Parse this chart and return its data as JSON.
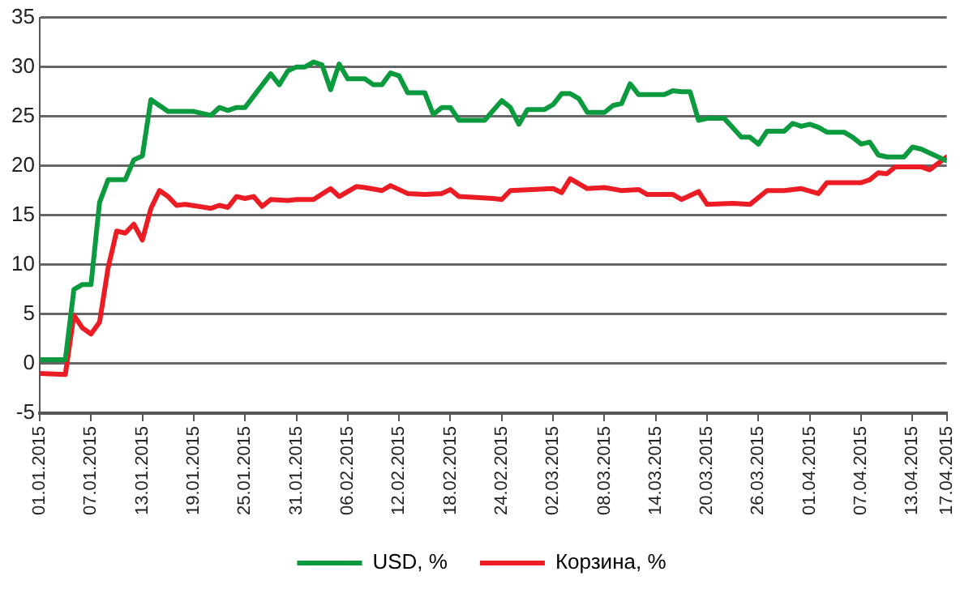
{
  "chart_data": {
    "type": "line",
    "xlim": [
      "2015-01-01",
      "2015-04-17"
    ],
    "xticks": [
      {
        "value": "2015-01-01",
        "label": "01.01.2015"
      },
      {
        "value": "2015-01-07",
        "label": "07.01.2015"
      },
      {
        "value": "2015-01-13",
        "label": "13.01.2015"
      },
      {
        "value": "2015-01-19",
        "label": "19.01.2015"
      },
      {
        "value": "2015-01-25",
        "label": "25.01.2015"
      },
      {
        "value": "2015-01-31",
        "label": "31.01.2015"
      },
      {
        "value": "2015-02-06",
        "label": "06.02.2015"
      },
      {
        "value": "2015-02-12",
        "label": "12.02.2015"
      },
      {
        "value": "2015-02-18",
        "label": "18.02.2015"
      },
      {
        "value": "2015-02-24",
        "label": "24.02.2015"
      },
      {
        "value": "2015-03-02",
        "label": "02.03.2015"
      },
      {
        "value": "2015-03-08",
        "label": "08.03.2015"
      },
      {
        "value": "2015-03-14",
        "label": "14.03.2015"
      },
      {
        "value": "2015-03-20",
        "label": "20.03.2015"
      },
      {
        "value": "2015-03-26",
        "label": "26.03.2015"
      },
      {
        "value": "2015-04-01",
        "label": "01.04.2015"
      },
      {
        "value": "2015-04-07",
        "label": "07.04.2015"
      },
      {
        "value": "2015-04-13",
        "label": "13.04.2015"
      },
      {
        "value": "2015-04-17",
        "label": "17.04.2015"
      }
    ],
    "ylim": [
      -5,
      35
    ],
    "yticks": [
      -5,
      0,
      5,
      10,
      15,
      20,
      25,
      30,
      35
    ],
    "grid": "y",
    "legend": "bottom",
    "marker": "none",
    "line_style": "solid",
    "series": [
      {
        "name": "USD, %",
        "color": "#0b9a3d",
        "x": [
          "2015-01-01",
          "2015-01-04",
          "2015-01-05",
          "2015-01-06",
          "2015-01-07",
          "2015-01-08",
          "2015-01-09",
          "2015-01-11",
          "2015-01-12",
          "2015-01-13",
          "2015-01-14",
          "2015-01-15",
          "2015-01-16",
          "2015-01-19",
          "2015-01-21",
          "2015-01-22",
          "2015-01-23",
          "2015-01-24",
          "2015-01-25",
          "2015-01-28",
          "2015-01-29",
          "2015-01-30",
          "2015-01-31",
          "2015-02-01",
          "2015-02-02",
          "2015-02-03",
          "2015-02-04",
          "2015-02-05",
          "2015-02-06",
          "2015-02-08",
          "2015-02-09",
          "2015-02-10",
          "2015-02-11",
          "2015-02-12",
          "2015-02-13",
          "2015-02-15",
          "2015-02-16",
          "2015-02-17",
          "2015-02-18",
          "2015-02-19",
          "2015-02-22",
          "2015-02-24",
          "2015-02-25",
          "2015-02-26",
          "2015-02-27",
          "2015-03-01",
          "2015-03-02",
          "2015-03-03",
          "2015-03-04",
          "2015-03-05",
          "2015-03-06",
          "2015-03-08",
          "2015-03-09",
          "2015-03-10",
          "2015-03-11",
          "2015-03-12",
          "2015-03-15",
          "2015-03-16",
          "2015-03-17",
          "2015-03-18",
          "2015-03-19",
          "2015-03-20",
          "2015-03-22",
          "2015-03-24",
          "2015-03-25",
          "2015-03-26",
          "2015-03-27",
          "2015-03-29",
          "2015-03-30",
          "2015-03-31",
          "2015-04-01",
          "2015-04-02",
          "2015-04-03",
          "2015-04-05",
          "2015-04-06",
          "2015-04-07",
          "2015-04-08",
          "2015-04-09",
          "2015-04-10",
          "2015-04-12",
          "2015-04-13",
          "2015-04-14",
          "2015-04-17"
        ],
        "values": [
          0.4,
          0.4,
          7.5,
          8.0,
          8.0,
          16.3,
          18.6,
          18.6,
          20.6,
          21.0,
          26.7,
          26.1,
          25.5,
          25.5,
          25.1,
          25.9,
          25.6,
          25.9,
          25.9,
          29.3,
          28.2,
          29.6,
          30.0,
          30.0,
          30.5,
          30.2,
          27.7,
          30.3,
          28.8,
          28.8,
          28.2,
          28.2,
          29.4,
          29.1,
          27.4,
          27.4,
          25.2,
          25.9,
          25.9,
          24.6,
          24.6,
          26.6,
          25.9,
          24.2,
          25.7,
          25.7,
          26.2,
          27.3,
          27.3,
          26.8,
          25.4,
          25.4,
          26.1,
          26.3,
          28.3,
          27.2,
          27.2,
          27.6,
          27.5,
          27.5,
          24.6,
          24.8,
          24.8,
          22.9,
          22.9,
          22.2,
          23.5,
          23.5,
          24.3,
          24.0,
          24.2,
          23.9,
          23.4,
          23.4,
          22.9,
          22.2,
          22.4,
          21.1,
          20.9,
          20.9,
          21.9,
          21.7,
          20.5
        ]
      },
      {
        "name": "Корзина, %",
        "color": "#ec1c24",
        "x": [
          "2015-01-01",
          "2015-01-04",
          "2015-01-05",
          "2015-01-06",
          "2015-01-07",
          "2015-01-08",
          "2015-01-09",
          "2015-01-10",
          "2015-01-11",
          "2015-01-12",
          "2015-01-13",
          "2015-01-14",
          "2015-01-15",
          "2015-01-16",
          "2015-01-17",
          "2015-01-18",
          "2015-01-21",
          "2015-01-22",
          "2015-01-23",
          "2015-01-24",
          "2015-01-25",
          "2015-01-26",
          "2015-01-27",
          "2015-01-28",
          "2015-01-30",
          "2015-01-31",
          "2015-02-02",
          "2015-02-04",
          "2015-02-05",
          "2015-02-07",
          "2015-02-08",
          "2015-02-10",
          "2015-02-11",
          "2015-02-13",
          "2015-02-15",
          "2015-02-17",
          "2015-02-18",
          "2015-02-19",
          "2015-02-23",
          "2015-02-24",
          "2015-02-25",
          "2015-03-02",
          "2015-03-03",
          "2015-03-04",
          "2015-03-06",
          "2015-03-08",
          "2015-03-10",
          "2015-03-12",
          "2015-03-13",
          "2015-03-16",
          "2015-03-17",
          "2015-03-19",
          "2015-03-20",
          "2015-03-23",
          "2015-03-25",
          "2015-03-27",
          "2015-03-29",
          "2015-03-31",
          "2015-04-02",
          "2015-04-03",
          "2015-04-07",
          "2015-04-08",
          "2015-04-09",
          "2015-04-10",
          "2015-04-11",
          "2015-04-14",
          "2015-04-15",
          "2015-04-17"
        ],
        "values": [
          -1.0,
          -1.1,
          4.9,
          3.6,
          3.0,
          4.2,
          9.7,
          13.4,
          13.2,
          14.1,
          12.5,
          15.7,
          17.5,
          16.9,
          16.0,
          16.1,
          15.7,
          16.0,
          15.8,
          16.9,
          16.7,
          16.9,
          15.9,
          16.6,
          16.5,
          16.6,
          16.6,
          17.7,
          16.9,
          17.9,
          17.8,
          17.5,
          18.0,
          17.2,
          17.1,
          17.2,
          17.6,
          16.9,
          16.7,
          16.6,
          17.5,
          17.7,
          17.3,
          18.7,
          17.7,
          17.8,
          17.5,
          17.6,
          17.1,
          17.1,
          16.6,
          17.4,
          16.1,
          16.2,
          16.1,
          17.5,
          17.5,
          17.7,
          17.2,
          18.3,
          18.3,
          18.6,
          19.3,
          19.2,
          19.9,
          19.9,
          19.6,
          20.9
        ]
      }
    ]
  }
}
